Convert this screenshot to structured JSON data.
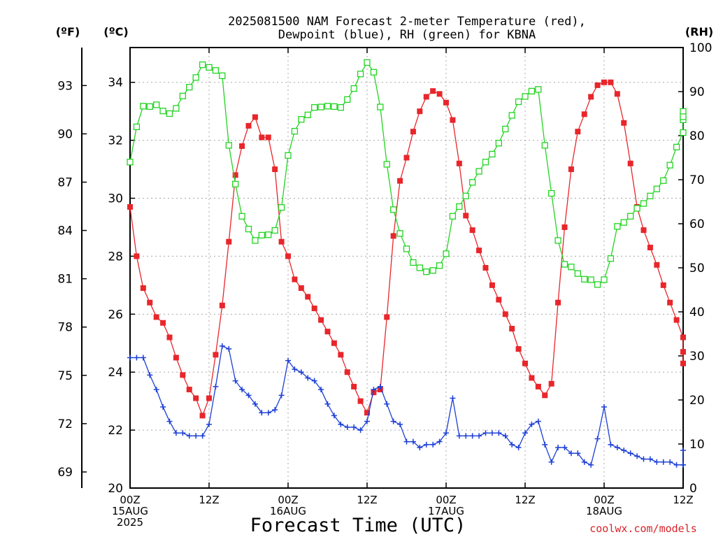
{
  "chart_data": {
    "type": "line",
    "title": "2025081500 NAM Forecast 2-meter Temperature (red), Dewpoint (blue), RH (green) for KBNA",
    "title_lines": [
      "2025081500 NAM Forecast 2-meter Temperature (red),",
      "Dewpoint (blue), RH (green) for KBNA"
    ],
    "xlabel": "Forecast Time (UTC)",
    "credit": "coolwx.com/models",
    "axis_unit_labels": {
      "fahrenheit": "(ºF)",
      "celsius": "(ºC)",
      "rh": "(RH)"
    },
    "x_unit": "forecast hour",
    "xlim": [
      0,
      84
    ],
    "x_ticks": [
      {
        "x": 0,
        "lines": [
          "00Z",
          "15AUG",
          "2025"
        ]
      },
      {
        "x": 12,
        "lines": [
          "12Z"
        ]
      },
      {
        "x": 24,
        "lines": [
          "00Z",
          "16AUG"
        ]
      },
      {
        "x": 36,
        "lines": [
          "12Z"
        ]
      },
      {
        "x": 48,
        "lines": [
          "00Z",
          "17AUG"
        ]
      },
      {
        "x": 60,
        "lines": [
          "12Z"
        ]
      },
      {
        "x": 72,
        "lines": [
          "00Z",
          "18AUG"
        ]
      },
      {
        "x": 84,
        "lines": [
          "12Z"
        ]
      }
    ],
    "ylim_celsius": [
      20,
      35.2
    ],
    "y_ticks_celsius": [
      20,
      22,
      24,
      26,
      28,
      30,
      32,
      34
    ],
    "y_ticks_fahrenheit": [
      69,
      72,
      75,
      78,
      81,
      84,
      87,
      90,
      93
    ],
    "ylim_rh": [
      0,
      100
    ],
    "y_ticks_rh": [
      0,
      10,
      20,
      30,
      40,
      50,
      60,
      70,
      80,
      90,
      100
    ],
    "grid": true,
    "series": [
      {
        "name": "Temperature",
        "axis": "celsius",
        "color": "#e8262b",
        "marker": "filled-square",
        "points": [
          [
            0,
            29.7
          ],
          [
            1,
            28.0
          ],
          [
            2,
            26.9
          ],
          [
            3,
            26.4
          ],
          [
            4,
            25.9
          ],
          [
            5,
            25.7
          ],
          [
            6,
            25.2
          ],
          [
            7,
            24.5
          ],
          [
            8,
            23.9
          ],
          [
            9,
            23.4
          ],
          [
            10,
            23.1
          ],
          [
            11,
            22.5
          ],
          [
            12,
            23.1
          ],
          [
            13,
            24.6
          ],
          [
            14,
            26.3
          ],
          [
            15,
            28.5
          ],
          [
            16,
            30.8
          ],
          [
            17,
            31.8
          ],
          [
            18,
            32.5
          ],
          [
            19,
            32.8
          ],
          [
            20,
            32.1
          ],
          [
            21,
            32.1
          ],
          [
            22,
            31.0
          ],
          [
            23,
            28.5
          ],
          [
            24,
            28.0
          ],
          [
            25,
            27.2
          ],
          [
            26,
            26.9
          ],
          [
            27,
            26.6
          ],
          [
            28,
            26.2
          ],
          [
            29,
            25.8
          ],
          [
            30,
            25.4
          ],
          [
            31,
            25.0
          ],
          [
            32,
            24.6
          ],
          [
            33,
            24.0
          ],
          [
            34,
            23.5
          ],
          [
            35,
            23.0
          ],
          [
            36,
            22.6
          ],
          [
            37,
            23.3
          ],
          [
            38,
            23.4
          ],
          [
            39,
            25.9
          ],
          [
            40,
            28.7
          ],
          [
            41,
            30.6
          ],
          [
            42,
            31.4
          ],
          [
            43,
            32.3
          ],
          [
            44,
            33.0
          ],
          [
            45,
            33.5
          ],
          [
            46,
            33.7
          ],
          [
            47,
            33.6
          ],
          [
            48,
            33.3
          ],
          [
            49,
            32.7
          ],
          [
            50,
            31.2
          ],
          [
            51,
            29.4
          ],
          [
            52,
            28.9
          ],
          [
            53,
            28.2
          ],
          [
            54,
            27.6
          ],
          [
            55,
            27.0
          ],
          [
            56,
            26.5
          ],
          [
            57,
            26.0
          ],
          [
            58,
            25.5
          ],
          [
            59,
            24.8
          ],
          [
            60,
            24.3
          ],
          [
            61,
            23.8
          ],
          [
            62,
            23.5
          ],
          [
            63,
            23.2
          ],
          [
            64,
            23.6
          ],
          [
            65,
            26.4
          ],
          [
            66,
            29.0
          ],
          [
            67,
            31.0
          ],
          [
            68,
            32.3
          ],
          [
            69,
            32.9
          ],
          [
            70,
            33.5
          ],
          [
            71,
            33.9
          ],
          [
            72,
            34.0
          ],
          [
            73,
            34.0
          ],
          [
            74,
            33.6
          ],
          [
            75,
            32.6
          ],
          [
            76,
            31.2
          ],
          [
            77,
            29.7
          ],
          [
            78,
            28.9
          ],
          [
            79,
            28.3
          ],
          [
            80,
            27.7
          ],
          [
            81,
            27.0
          ],
          [
            82,
            26.4
          ],
          [
            83,
            25.8
          ],
          [
            84,
            25.2
          ],
          [
            85,
            24.7
          ],
          [
            86,
            24.3
          ]
        ]
      },
      {
        "name": "Dewpoint",
        "axis": "celsius",
        "color": "#1c3fd6",
        "marker": "plus",
        "points": [
          [
            0,
            24.5
          ],
          [
            1,
            24.5
          ],
          [
            2,
            24.5
          ],
          [
            3,
            23.9
          ],
          [
            4,
            23.4
          ],
          [
            5,
            22.8
          ],
          [
            6,
            22.3
          ],
          [
            7,
            21.9
          ],
          [
            8,
            21.9
          ],
          [
            9,
            21.8
          ],
          [
            10,
            21.8
          ],
          [
            11,
            21.8
          ],
          [
            12,
            22.2
          ],
          [
            13,
            23.5
          ],
          [
            14,
            24.9
          ],
          [
            15,
            24.8
          ],
          [
            16,
            23.7
          ],
          [
            17,
            23.4
          ],
          [
            18,
            23.2
          ],
          [
            19,
            22.9
          ],
          [
            20,
            22.6
          ],
          [
            21,
            22.6
          ],
          [
            22,
            22.7
          ],
          [
            23,
            23.2
          ],
          [
            24,
            24.4
          ],
          [
            25,
            24.1
          ],
          [
            26,
            24.0
          ],
          [
            27,
            23.8
          ],
          [
            28,
            23.7
          ],
          [
            29,
            23.4
          ],
          [
            30,
            22.9
          ],
          [
            31,
            22.5
          ],
          [
            32,
            22.2
          ],
          [
            33,
            22.1
          ],
          [
            34,
            22.1
          ],
          [
            35,
            22.0
          ],
          [
            36,
            22.3
          ],
          [
            37,
            23.4
          ],
          [
            38,
            23.5
          ],
          [
            39,
            22.9
          ],
          [
            40,
            22.3
          ],
          [
            41,
            22.2
          ],
          [
            42,
            21.6
          ],
          [
            43,
            21.6
          ],
          [
            44,
            21.4
          ],
          [
            45,
            21.5
          ],
          [
            46,
            21.5
          ],
          [
            47,
            21.6
          ],
          [
            48,
            21.9
          ],
          [
            49,
            23.1
          ],
          [
            50,
            21.8
          ],
          [
            51,
            21.8
          ],
          [
            52,
            21.8
          ],
          [
            53,
            21.8
          ],
          [
            54,
            21.9
          ],
          [
            55,
            21.9
          ],
          [
            56,
            21.9
          ],
          [
            57,
            21.8
          ],
          [
            58,
            21.5
          ],
          [
            59,
            21.4
          ],
          [
            60,
            21.9
          ],
          [
            61,
            22.2
          ],
          [
            62,
            22.3
          ],
          [
            63,
            21.5
          ],
          [
            64,
            20.9
          ],
          [
            65,
            21.4
          ],
          [
            66,
            21.4
          ],
          [
            67,
            21.2
          ],
          [
            68,
            21.2
          ],
          [
            69,
            20.9
          ],
          [
            70,
            20.8
          ],
          [
            71,
            21.7
          ],
          [
            72,
            22.8
          ],
          [
            73,
            21.5
          ],
          [
            74,
            21.4
          ],
          [
            75,
            21.3
          ],
          [
            76,
            21.2
          ],
          [
            77,
            21.1
          ],
          [
            78,
            21.0
          ],
          [
            79,
            21.0
          ],
          [
            80,
            20.9
          ],
          [
            81,
            20.9
          ],
          [
            82,
            20.9
          ],
          [
            83,
            20.8
          ],
          [
            84,
            20.8
          ],
          [
            85,
            20.8
          ],
          [
            86,
            21.3
          ]
        ]
      },
      {
        "name": "RH",
        "axis": "rh",
        "color": "#22d422",
        "marker": "open-square",
        "points": [
          [
            0,
            74
          ],
          [
            1,
            82
          ],
          [
            2,
            86.7
          ],
          [
            3,
            86.6
          ],
          [
            4,
            87
          ],
          [
            5,
            85.6
          ],
          [
            6,
            85
          ],
          [
            7,
            86.2
          ],
          [
            8,
            89
          ],
          [
            9,
            91
          ],
          [
            10,
            93.2
          ],
          [
            11,
            96.1
          ],
          [
            12,
            95.5
          ],
          [
            13,
            94.8
          ],
          [
            14,
            93.6
          ],
          [
            15,
            77.8
          ],
          [
            16,
            69
          ],
          [
            17,
            61.7
          ],
          [
            18,
            58.8
          ],
          [
            19,
            56.2
          ],
          [
            20,
            57.4
          ],
          [
            21,
            57.5
          ],
          [
            22,
            58.5
          ],
          [
            23,
            63.7
          ],
          [
            24,
            75.5
          ],
          [
            25,
            81
          ],
          [
            26,
            83.7
          ],
          [
            27,
            84.7
          ],
          [
            28,
            86.4
          ],
          [
            29,
            86.5
          ],
          [
            30,
            86.7
          ],
          [
            31,
            86.6
          ],
          [
            32,
            86.4
          ],
          [
            33,
            88.2
          ],
          [
            34,
            90.7
          ],
          [
            35,
            94
          ],
          [
            36,
            96.6
          ],
          [
            37,
            94.4
          ],
          [
            38,
            86.5
          ],
          [
            39,
            73.5
          ],
          [
            40,
            63.2
          ],
          [
            41,
            57.8
          ],
          [
            42,
            54.3
          ],
          [
            43,
            51.2
          ],
          [
            44,
            50
          ],
          [
            45,
            49.1
          ],
          [
            46,
            49.4
          ],
          [
            47,
            50.5
          ],
          [
            48,
            53.2
          ],
          [
            49,
            61.7
          ],
          [
            50,
            63.9
          ],
          [
            51,
            66.3
          ],
          [
            52,
            69.4
          ],
          [
            53,
            71.9
          ],
          [
            54,
            74
          ],
          [
            55,
            75.8
          ],
          [
            56,
            78.3
          ],
          [
            57,
            81.5
          ],
          [
            58,
            84.6
          ],
          [
            59,
            87.7
          ],
          [
            60,
            88.9
          ],
          [
            61,
            90.1
          ],
          [
            62,
            90.5
          ],
          [
            63,
            77.8
          ],
          [
            64,
            66.9
          ],
          [
            65,
            56.2
          ],
          [
            66,
            50.8
          ],
          [
            67,
            50.2
          ],
          [
            68,
            48.7
          ],
          [
            69,
            47.4
          ],
          [
            70,
            47.3
          ],
          [
            71,
            46.2
          ],
          [
            72,
            47.3
          ],
          [
            73,
            52.1
          ],
          [
            74,
            59.4
          ],
          [
            75,
            60.3
          ],
          [
            76,
            61.7
          ],
          [
            77,
            63.5
          ],
          [
            78,
            64.6
          ],
          [
            79,
            66.3
          ],
          [
            80,
            67.9
          ],
          [
            81,
            69.8
          ],
          [
            82,
            73.3
          ],
          [
            83,
            77.4
          ],
          [
            84,
            80.7
          ],
          [
            85,
            83.6
          ],
          [
            86,
            85.5
          ],
          [
            87,
            84.3
          ]
        ]
      }
    ]
  }
}
